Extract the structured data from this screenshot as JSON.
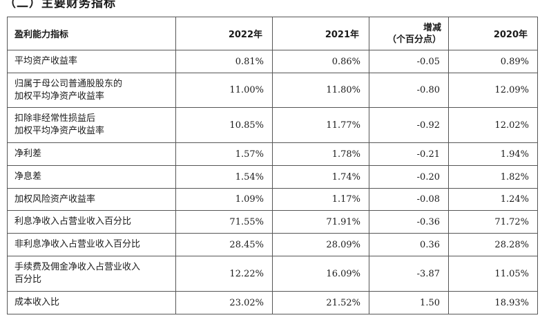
{
  "section_title": "（二）主要财务指标",
  "table": {
    "headers": [
      "盈利能力指标",
      "2022年",
      "2021年",
      "增减",
      "（个百分点）",
      "2020年"
    ],
    "rows": [
      {
        "label": "平均资产收益率",
        "y2022": "0.81%",
        "y2021": "0.86%",
        "change": "-0.05",
        "y2020": "0.89%"
      },
      {
        "label": "归属于母公司普通股股东的\n加权平均净资产收益率",
        "y2022": "11.00%",
        "y2021": "11.80%",
        "change": "-0.80",
        "y2020": "12.09%"
      },
      {
        "label": "扣除非经常性损益后\n加权平均净资产收益率",
        "y2022": "10.85%",
        "y2021": "11.77%",
        "change": "-0.92",
        "y2020": "12.02%"
      },
      {
        "label": "净利差",
        "y2022": "1.57%",
        "y2021": "1.78%",
        "change": "-0.21",
        "y2020": "1.94%"
      },
      {
        "label": "净息差",
        "y2022": "1.54%",
        "y2021": "1.74%",
        "change": "-0.20",
        "y2020": "1.82%"
      },
      {
        "label": "加权风险资产收益率",
        "y2022": "1.09%",
        "y2021": "1.17%",
        "change": "-0.08",
        "y2020": "1.24%"
      },
      {
        "label": "利息净收入占营业收入百分比",
        "y2022": "71.55%",
        "y2021": "71.91%",
        "change": "-0.36",
        "y2020": "71.72%"
      },
      {
        "label": "非利息净收入占营业收入百分比",
        "y2022": "28.45%",
        "y2021": "28.09%",
        "change": "0.36",
        "y2020": "28.28%"
      },
      {
        "label": "手续费及佣金净收入占营业收入\n百分比",
        "y2022": "12.22%",
        "y2021": "16.09%",
        "change": "-3.87",
        "y2020": "11.05%"
      },
      {
        "label": "成本收入比",
        "y2022": "23.02%",
        "y2021": "21.52%",
        "change": "1.50",
        "y2020": "18.93%"
      }
    ]
  }
}
